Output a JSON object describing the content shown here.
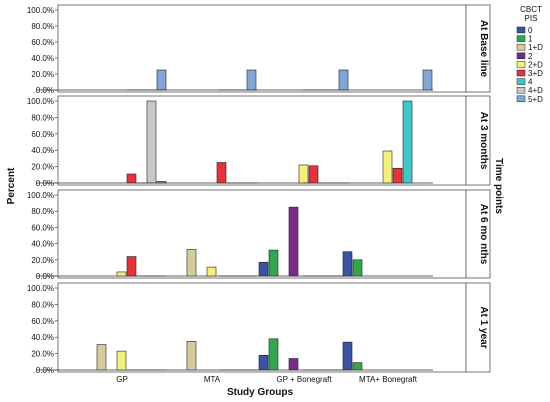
{
  "chart_data": {
    "type": "bar",
    "title": "",
    "xlabel": "Study Groups",
    "ylabel": "Percent",
    "right_label": "Time points",
    "ylim": [
      0,
      100
    ],
    "yticks": [
      "0.0%",
      "20.0%",
      "40.0%",
      "60.0%",
      "80.0%",
      "100.0%"
    ],
    "categories": [
      "GP",
      "MTA",
      "GP + Bonegraft",
      "MTA+ Bonegraft"
    ],
    "legend": {
      "title_line1": "CBCT",
      "title_line2": "PIS",
      "placement": "right",
      "entries": [
        {
          "label": "0",
          "color": "#3a53a4"
        },
        {
          "label": "1",
          "color": "#2fa84f"
        },
        {
          "label": "1+D",
          "color": "#d6cc9a"
        },
        {
          "label": "2",
          "color": "#7b2a8c"
        },
        {
          "label": "2+D",
          "color": "#f5f07a"
        },
        {
          "label": "3+D",
          "color": "#e8313a"
        },
        {
          "label": "4",
          "color": "#3ec9c9"
        },
        {
          "label": "4+D",
          "color": "#c8c8c8"
        },
        {
          "label": "5+D",
          "color": "#7fa7d8"
        }
      ]
    },
    "panels": [
      {
        "label": "At Base line",
        "values": [
          [
            0,
            0,
            0,
            0,
            0,
            0,
            0,
            0,
            25
          ],
          [
            0,
            0,
            0,
            0,
            0,
            0,
            0,
            0,
            25
          ],
          [
            0,
            0,
            0,
            0,
            0,
            0,
            0,
            0,
            25
          ],
          [
            0,
            0,
            0,
            0,
            0,
            0,
            0,
            0,
            25
          ]
        ]
      },
      {
        "label": "At 3 months",
        "values": [
          [
            0,
            0,
            0,
            0,
            0,
            11,
            0,
            100,
            2
          ],
          [
            0,
            0,
            0,
            0,
            0,
            25,
            0,
            0,
            0
          ],
          [
            0,
            0,
            0,
            0,
            22,
            21,
            0,
            0,
            0
          ],
          [
            0,
            0,
            0,
            0,
            39,
            18,
            100,
            0,
            0
          ]
        ]
      },
      {
        "label": "At 6 mo nths",
        "values": [
          [
            0,
            0,
            0,
            0,
            5,
            24,
            0,
            0,
            0
          ],
          [
            0,
            0,
            33,
            0,
            11,
            0,
            0,
            0,
            0
          ],
          [
            17,
            32,
            0,
            85,
            0,
            0,
            0,
            0,
            0
          ],
          [
            30,
            20,
            0,
            0,
            0,
            0,
            0,
            0,
            0
          ]
        ]
      },
      {
        "label": "At 1 year",
        "values": [
          [
            0,
            0,
            31,
            0,
            23,
            0,
            0,
            0,
            0
          ],
          [
            0,
            0,
            35,
            0,
            0,
            0,
            0,
            0,
            0
          ],
          [
            18,
            38,
            0,
            14,
            0,
            0,
            0,
            0,
            0
          ],
          [
            34,
            9,
            0,
            0,
            0,
            0,
            0,
            0,
            0
          ]
        ]
      }
    ]
  }
}
